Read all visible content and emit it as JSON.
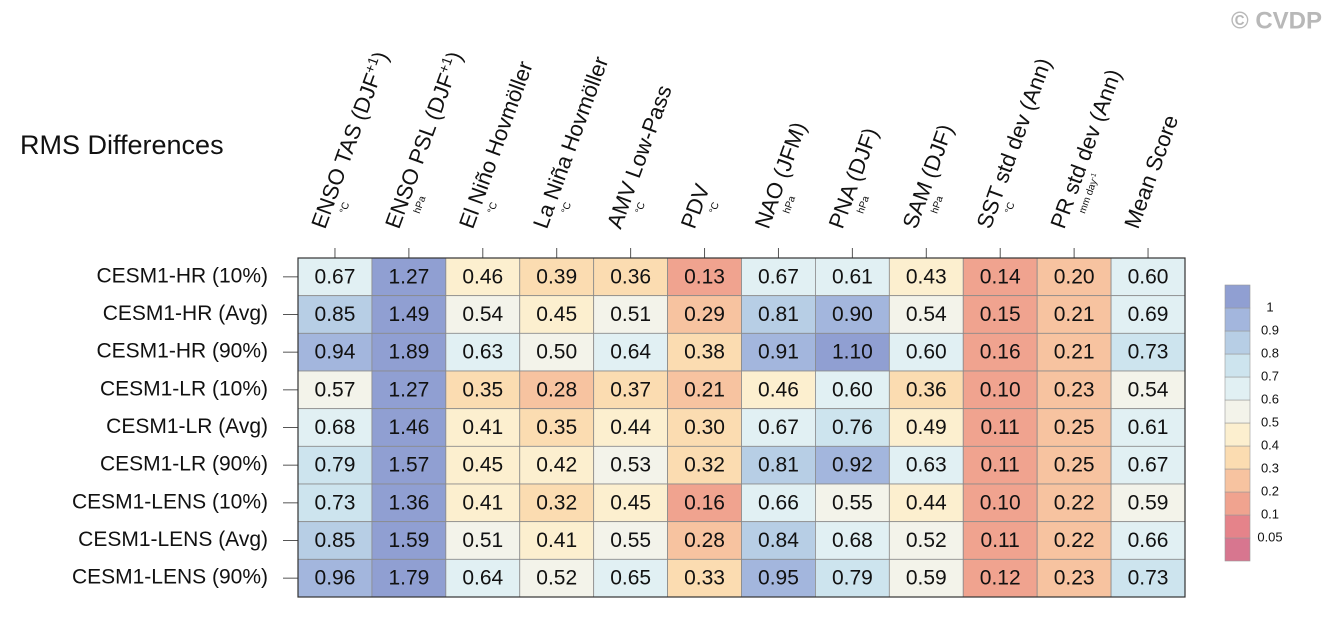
{
  "watermark": "© CVDP",
  "chart_data": {
    "type": "heatmap",
    "title": "RMS Differences",
    "columns": [
      {
        "label": [
          {
            "text": "ENSO TAS (DJF"
          },
          {
            "text": "+1",
            "sup": true
          },
          {
            "text": ")"
          }
        ],
        "unit": [
          {
            "text": "°C"
          }
        ]
      },
      {
        "label": [
          {
            "text": "ENSO PSL (DJF"
          },
          {
            "text": "+1",
            "sup": true
          },
          {
            "text": ")"
          }
        ],
        "unit": [
          {
            "text": "hPa"
          }
        ]
      },
      {
        "label": [
          {
            "text": "El Niño Hovmöller"
          }
        ],
        "unit": [
          {
            "text": "°C"
          }
        ]
      },
      {
        "label": [
          {
            "text": "La Niña Hovmöller"
          }
        ],
        "unit": [
          {
            "text": "°C"
          }
        ]
      },
      {
        "label": [
          {
            "text": "AMV Low-Pass"
          }
        ],
        "unit": [
          {
            "text": "°C"
          }
        ]
      },
      {
        "label": [
          {
            "text": "PDV"
          }
        ],
        "unit": [
          {
            "text": "°C"
          }
        ]
      },
      {
        "label": [
          {
            "text": "NAO (JFM)"
          }
        ],
        "unit": [
          {
            "text": "hPa"
          }
        ]
      },
      {
        "label": [
          {
            "text": "PNA (DJF)"
          }
        ],
        "unit": [
          {
            "text": "hPa"
          }
        ]
      },
      {
        "label": [
          {
            "text": "SAM (DJF)"
          }
        ],
        "unit": [
          {
            "text": "hPa"
          }
        ]
      },
      {
        "label": [
          {
            "text": "SST std dev (Ann)"
          }
        ],
        "unit": [
          {
            "text": "°C"
          }
        ]
      },
      {
        "label": [
          {
            "text": "PR std dev (Ann)"
          }
        ],
        "unit": [
          {
            "text": "mm day"
          },
          {
            "text": "-1",
            "sup": true
          }
        ]
      },
      {
        "label": [
          {
            "text": "Mean Score"
          }
        ],
        "unit": []
      }
    ],
    "series": [
      {
        "name": "CESM1-HR (10%)",
        "values": [
          0.67,
          1.27,
          0.46,
          0.39,
          0.36,
          0.13,
          0.67,
          0.61,
          0.43,
          0.14,
          0.2,
          0.6
        ],
        "value_labels": [
          "0.67",
          "1.27",
          "0.46",
          "0.39",
          "0.36",
          "0.13",
          "0.67",
          "0.61",
          "0.43",
          "0.14",
          "0.20",
          "0.60"
        ]
      },
      {
        "name": "CESM1-HR (Avg)",
        "values": [
          0.85,
          1.49,
          0.54,
          0.45,
          0.51,
          0.29,
          0.81,
          0.9,
          0.54,
          0.15,
          0.21,
          0.69
        ],
        "value_labels": [
          "0.85",
          "1.49",
          "0.54",
          "0.45",
          "0.51",
          "0.29",
          "0.81",
          "0.90",
          "0.54",
          "0.15",
          "0.21",
          "0.69"
        ]
      },
      {
        "name": "CESM1-HR (90%)",
        "values": [
          0.94,
          1.89,
          0.63,
          0.5,
          0.64,
          0.38,
          0.91,
          1.1,
          0.6,
          0.16,
          0.21,
          0.73
        ],
        "value_labels": [
          "0.94",
          "1.89",
          "0.63",
          "0.50",
          "0.64",
          "0.38",
          "0.91",
          "1.10",
          "0.60",
          "0.16",
          "0.21",
          "0.73"
        ]
      },
      {
        "name": "CESM1-LR (10%)",
        "values": [
          0.57,
          1.27,
          0.35,
          0.28,
          0.37,
          0.21,
          0.46,
          0.6,
          0.36,
          0.1,
          0.23,
          0.54
        ],
        "value_labels": [
          "0.57",
          "1.27",
          "0.35",
          "0.28",
          "0.37",
          "0.21",
          "0.46",
          "0.60",
          "0.36",
          "0.10",
          "0.23",
          "0.54"
        ]
      },
      {
        "name": "CESM1-LR (Avg)",
        "values": [
          0.68,
          1.46,
          0.41,
          0.35,
          0.44,
          0.3,
          0.67,
          0.76,
          0.49,
          0.11,
          0.25,
          0.61
        ],
        "value_labels": [
          "0.68",
          "1.46",
          "0.41",
          "0.35",
          "0.44",
          "0.30",
          "0.67",
          "0.76",
          "0.49",
          "0.11",
          "0.25",
          "0.61"
        ]
      },
      {
        "name": "CESM1-LR (90%)",
        "values": [
          0.79,
          1.57,
          0.45,
          0.42,
          0.53,
          0.32,
          0.81,
          0.92,
          0.63,
          0.11,
          0.25,
          0.67
        ],
        "value_labels": [
          "0.79",
          "1.57",
          "0.45",
          "0.42",
          "0.53",
          "0.32",
          "0.81",
          "0.92",
          "0.63",
          "0.11",
          "0.25",
          "0.67"
        ]
      },
      {
        "name": "CESM1-LENS (10%)",
        "values": [
          0.73,
          1.36,
          0.41,
          0.32,
          0.45,
          0.16,
          0.66,
          0.55,
          0.44,
          0.1,
          0.22,
          0.59
        ],
        "value_labels": [
          "0.73",
          "1.36",
          "0.41",
          "0.32",
          "0.45",
          "0.16",
          "0.66",
          "0.55",
          "0.44",
          "0.10",
          "0.22",
          "0.59"
        ]
      },
      {
        "name": "CESM1-LENS (Avg)",
        "values": [
          0.85,
          1.59,
          0.51,
          0.41,
          0.55,
          0.28,
          0.84,
          0.68,
          0.52,
          0.11,
          0.22,
          0.66
        ],
        "value_labels": [
          "0.85",
          "1.59",
          "0.51",
          "0.41",
          "0.55",
          "0.28",
          "0.84",
          "0.68",
          "0.52",
          "0.11",
          "0.22",
          "0.66"
        ]
      },
      {
        "name": "CESM1-LENS (90%)",
        "values": [
          0.96,
          1.79,
          0.64,
          0.52,
          0.65,
          0.33,
          0.95,
          0.79,
          0.59,
          0.12,
          0.23,
          0.73
        ],
        "value_labels": [
          "0.96",
          "1.79",
          "0.64",
          "0.52",
          "0.65",
          "0.33",
          "0.95",
          "0.79",
          "0.59",
          "0.12",
          "0.23",
          "0.73"
        ]
      }
    ],
    "colorbar": {
      "bounds": [
        0.05,
        0.1,
        0.2,
        0.3,
        0.4,
        0.5,
        0.6,
        0.7,
        0.8,
        0.9,
        1
      ],
      "colors": [
        "#d7768f",
        "#e5838a",
        "#f0a38f",
        "#f7c3a0",
        "#fbdcb1",
        "#fcefcf",
        "#f3f3ea",
        "#e1f0f3",
        "#cde4ee",
        "#b7cee5",
        "#a3b6dd",
        "#909fd2"
      ]
    }
  }
}
